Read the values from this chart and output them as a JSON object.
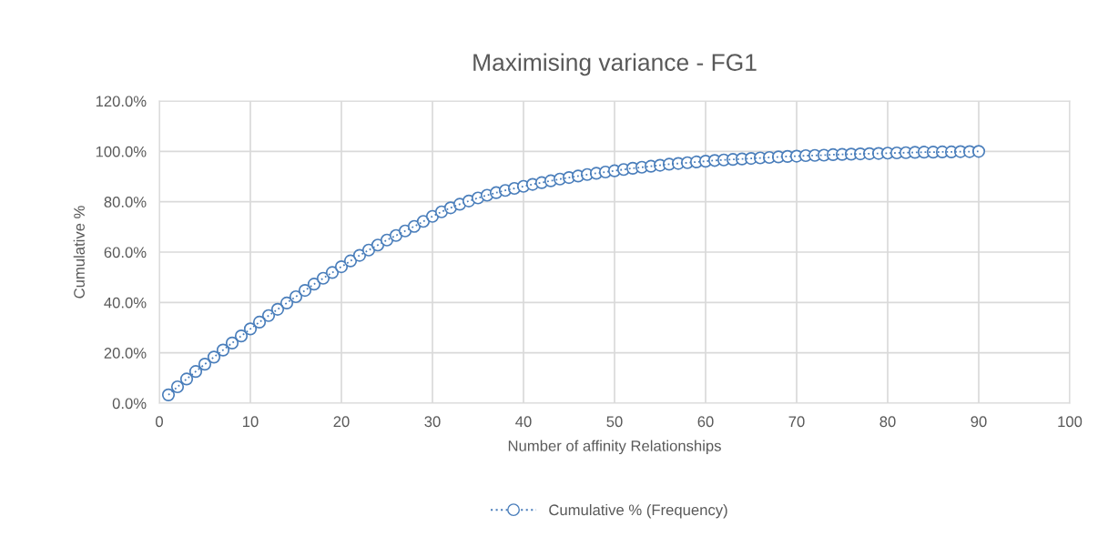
{
  "chart_data": {
    "type": "line",
    "title": "Maximising variance - FG1",
    "xlabel": "Number of affinity Relationships",
    "ylabel": "Cumulative %",
    "x": [
      1,
      2,
      3,
      4,
      5,
      6,
      7,
      8,
      9,
      10,
      11,
      12,
      13,
      14,
      15,
      16,
      17,
      18,
      19,
      20,
      21,
      22,
      23,
      24,
      25,
      26,
      27,
      28,
      29,
      30,
      31,
      32,
      33,
      34,
      35,
      36,
      37,
      38,
      39,
      40,
      41,
      42,
      43,
      44,
      45,
      46,
      47,
      48,
      49,
      50,
      51,
      52,
      53,
      54,
      55,
      56,
      57,
      58,
      59,
      60,
      61,
      62,
      63,
      64,
      65,
      66,
      67,
      68,
      69,
      70,
      71,
      72,
      73,
      74,
      75,
      76,
      77,
      78,
      79,
      80,
      81,
      82,
      83,
      84,
      85,
      86,
      87,
      88,
      89,
      90
    ],
    "series": [
      {
        "name": "Cumulative % (Frequency)",
        "color": "#4a7ebb",
        "values": [
          3.3,
          6.5,
          9.6,
          12.6,
          15.5,
          18.3,
          21.1,
          23.9,
          26.7,
          29.5,
          32.2,
          34.8,
          37.3,
          39.8,
          42.3,
          44.8,
          47.3,
          49.6,
          51.9,
          54.2,
          56.5,
          58.7,
          60.8,
          62.8,
          64.8,
          66.6,
          68.4,
          70.2,
          72.2,
          74.2,
          76.0,
          77.6,
          79.0,
          80.3,
          81.5,
          82.6,
          83.6,
          84.5,
          85.3,
          86.1,
          86.9,
          87.6,
          88.3,
          89.0,
          89.6,
          90.2,
          90.8,
          91.3,
          91.8,
          92.3,
          92.8,
          93.3,
          93.7,
          94.1,
          94.5,
          94.9,
          95.2,
          95.5,
          95.8,
          96.1,
          96.4,
          96.6,
          96.8,
          97.0,
          97.2,
          97.4,
          97.6,
          97.8,
          98.0,
          98.1,
          98.3,
          98.4,
          98.5,
          98.7,
          98.8,
          98.9,
          99.0,
          99.1,
          99.2,
          99.3,
          99.4,
          99.5,
          99.6,
          99.7,
          99.7,
          99.8,
          99.8,
          99.9,
          99.9,
          100
        ]
      }
    ],
    "xlim": [
      0,
      100
    ],
    "xticks": [
      0,
      10,
      20,
      30,
      40,
      50,
      60,
      70,
      80,
      90,
      100
    ],
    "ylim": [
      0,
      120
    ],
    "yticks": [
      {
        "value": 0,
        "label": "0.0%"
      },
      {
        "value": 20,
        "label": "20.0%"
      },
      {
        "value": 40,
        "label": "40.0%"
      },
      {
        "value": 60,
        "label": "60.0%"
      },
      {
        "value": 80,
        "label": "80.0%"
      },
      {
        "value": 100,
        "label": "100.0%"
      },
      {
        "value": 120,
        "label": "120.0%"
      }
    ],
    "grid": true,
    "legend": "bottom",
    "marker": "circle",
    "line_style": "dotted"
  }
}
